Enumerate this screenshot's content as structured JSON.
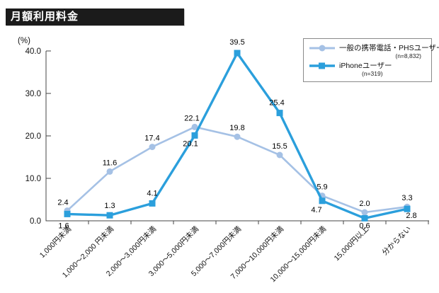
{
  "page": {
    "title_bar": "月額利用料金"
  },
  "chart_data": {
    "type": "line",
    "title": "月額利用料金",
    "unit_label": "(%)",
    "ylabel": "(%)",
    "xlabel": "",
    "ylim": [
      0,
      40
    ],
    "y_ticks": [
      "0.0",
      "10.0",
      "20.0",
      "30.0",
      "40.0"
    ],
    "grid": false,
    "legend_position": "top-right",
    "categories": [
      "1,000円未満",
      "1,000〜2,000 円未満",
      "2,000〜3,000円未満",
      "3,000〜5,000円未満",
      "5,000〜7,000円未満",
      "7,000〜10,000円未満",
      "10,000〜15,000円未満",
      "15,000円以上",
      "分からない"
    ],
    "series": [
      {
        "name": "一般の携帯電話・PHSユーザー",
        "n_label": "(n=8,832)",
        "color": "#a5c1e5",
        "marker": "circle",
        "values": [
          2.4,
          11.6,
          17.4,
          22.1,
          19.8,
          15.5,
          5.9,
          2.0,
          3.3
        ],
        "label_offsets": [
          [
            -6,
            -8
          ],
          [
            0,
            -9
          ],
          [
            0,
            -9
          ],
          [
            -4,
            -9
          ],
          [
            0,
            -9
          ],
          [
            0,
            -9
          ],
          [
            0,
            -9
          ],
          [
            0,
            -9
          ],
          [
            0,
            -9
          ]
        ]
      },
      {
        "name": "iPhoneユーザー",
        "n_label": "(n=319)",
        "color": "#2b9fdc",
        "marker": "square",
        "values": [
          1.6,
          1.3,
          4.1,
          20.1,
          39.5,
          25.4,
          4.7,
          0.6,
          2.8
        ],
        "label_offsets": [
          [
            -5,
            20
          ],
          [
            0,
            -10
          ],
          [
            0,
            -11
          ],
          [
            -6,
            15
          ],
          [
            0,
            -12
          ],
          [
            -4,
            -11
          ],
          [
            -8,
            16
          ],
          [
            0,
            14
          ],
          [
            6,
            13
          ]
        ]
      }
    ],
    "axis_color": "#444444",
    "label_color": "#111111"
  }
}
